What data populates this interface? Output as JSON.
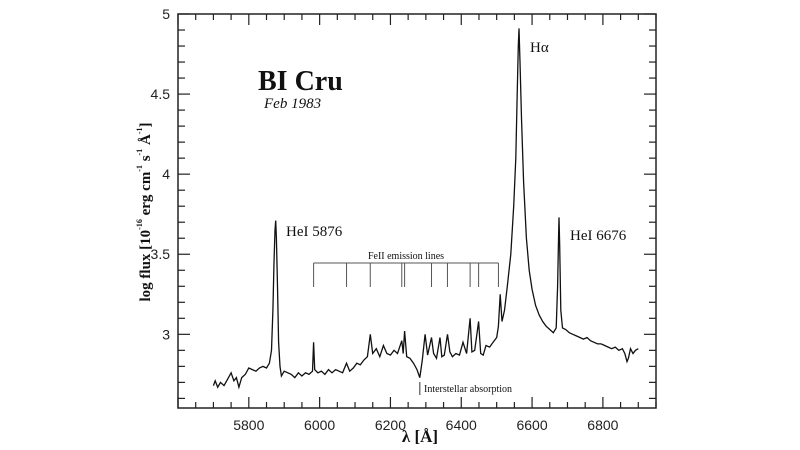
{
  "chart_data": {
    "type": "line",
    "title": "BI Cru",
    "subtitle": "Feb 1983",
    "xlabel": "λ [Å]",
    "ylabel": {
      "main": "log flux [10",
      "exp1": "-16",
      "u1": " erg cm",
      "exp2": "-1",
      "u2": " s",
      "exp3": "-1",
      "u3": " Å",
      "exp4": "-1",
      "end": "]"
    },
    "xlim": [
      5600,
      6950
    ],
    "ylim": [
      2.54,
      5.0
    ],
    "xticks": [
      5800,
      6000,
      6200,
      6400,
      6600,
      6800
    ],
    "xtick_labels": [
      "5800",
      "6000",
      "6200",
      "6400",
      "6600",
      "6800"
    ],
    "yticks": [
      3,
      3.5,
      4,
      4.5,
      5
    ],
    "ytick_labels": [
      "3",
      "3.5",
      "4",
      "4.5",
      "5"
    ],
    "x_minor_step": 50,
    "y_minor_step": 0.1,
    "grid": false,
    "series": [
      {
        "x": [
          5700,
          5705,
          5712,
          5720,
          5730,
          5740,
          5750,
          5758,
          5765,
          5772,
          5780,
          5790,
          5800,
          5810,
          5820,
          5830,
          5840,
          5850,
          5858,
          5864,
          5868,
          5871,
          5874,
          5876,
          5878,
          5881,
          5884,
          5888,
          5892,
          5900,
          5910,
          5920,
          5930,
          5940,
          5950,
          5960,
          5970,
          5980,
          5983,
          5986,
          5995,
          6005,
          6015,
          6025,
          6035,
          6045,
          6055,
          6065,
          6076,
          6085,
          6095,
          6105,
          6115,
          6125,
          6135,
          6143,
          6150,
          6160,
          6170,
          6180,
          6190,
          6200,
          6210,
          6220,
          6232,
          6236,
          6240,
          6246,
          6255,
          6265,
          6275,
          6283,
          6290,
          6298,
          6305,
          6316,
          6322,
          6330,
          6340,
          6345,
          6352,
          6361,
          6368,
          6375,
          6385,
          6395,
          6405,
          6415,
          6425,
          6430,
          6438,
          6449,
          6455,
          6462,
          6470,
          6480,
          6490,
          6500,
          6505,
          6510,
          6515,
          6522,
          6530,
          6540,
          6548,
          6554,
          6558,
          6561,
          6563,
          6566,
          6570,
          6576,
          6584,
          6592,
          6600,
          6610,
          6620,
          6630,
          6640,
          6650,
          6660,
          6668,
          6672,
          6675,
          6676,
          6678,
          6681,
          6686,
          6695,
          6705,
          6715,
          6725,
          6735,
          6745,
          6755,
          6765,
          6775,
          6785,
          6795,
          6805,
          6815,
          6825,
          6835,
          6845,
          6855,
          6862,
          6868,
          6872,
          6878,
          6885,
          6892,
          6900
        ],
        "y": [
          2.68,
          2.71,
          2.67,
          2.7,
          2.68,
          2.72,
          2.76,
          2.71,
          2.73,
          2.67,
          2.73,
          2.75,
          2.79,
          2.78,
          2.77,
          2.79,
          2.8,
          2.79,
          2.82,
          2.9,
          3.15,
          3.45,
          3.65,
          3.71,
          3.6,
          3.3,
          2.95,
          2.8,
          2.74,
          2.77,
          2.76,
          2.75,
          2.73,
          2.76,
          2.74,
          2.76,
          2.75,
          2.77,
          2.95,
          2.78,
          2.76,
          2.77,
          2.75,
          2.78,
          2.76,
          2.78,
          2.77,
          2.76,
          2.82,
          2.77,
          2.79,
          2.82,
          2.81,
          2.84,
          2.86,
          3.0,
          2.88,
          2.91,
          2.86,
          2.93,
          2.88,
          2.87,
          2.9,
          2.88,
          2.96,
          2.88,
          3.02,
          2.86,
          2.85,
          2.82,
          2.78,
          2.73,
          2.84,
          3.0,
          2.87,
          2.98,
          2.88,
          2.85,
          2.98,
          2.86,
          2.87,
          3.0,
          2.89,
          2.86,
          2.88,
          2.87,
          2.95,
          2.88,
          3.1,
          2.89,
          2.9,
          3.08,
          2.88,
          2.87,
          2.93,
          2.92,
          2.95,
          2.98,
          3.05,
          3.25,
          3.08,
          3.15,
          3.3,
          3.5,
          3.8,
          4.1,
          4.5,
          4.8,
          4.91,
          4.7,
          4.35,
          3.95,
          3.6,
          3.4,
          3.28,
          3.18,
          3.12,
          3.08,
          3.05,
          3.03,
          3.01,
          3.04,
          3.3,
          3.62,
          3.73,
          3.55,
          3.15,
          3.04,
          3.03,
          3.01,
          3.0,
          2.99,
          2.98,
          2.97,
          2.98,
          2.96,
          2.95,
          2.94,
          2.94,
          2.93,
          2.92,
          2.91,
          2.92,
          2.9,
          2.91,
          2.88,
          2.83,
          2.85,
          2.91,
          2.88,
          2.9,
          2.91
        ]
      }
    ],
    "annotations": [
      {
        "text": "HeI 5876"
      },
      {
        "text": "Hα"
      },
      {
        "text": "HeI 6676"
      },
      {
        "text": "FeII emission lines",
        "lines": [
          5983,
          6076,
          6143,
          6232,
          6240,
          6316,
          6361,
          6425,
          6449,
          6505
        ]
      },
      {
        "text": "Interstellar absorption",
        "at": 6283
      }
    ]
  }
}
